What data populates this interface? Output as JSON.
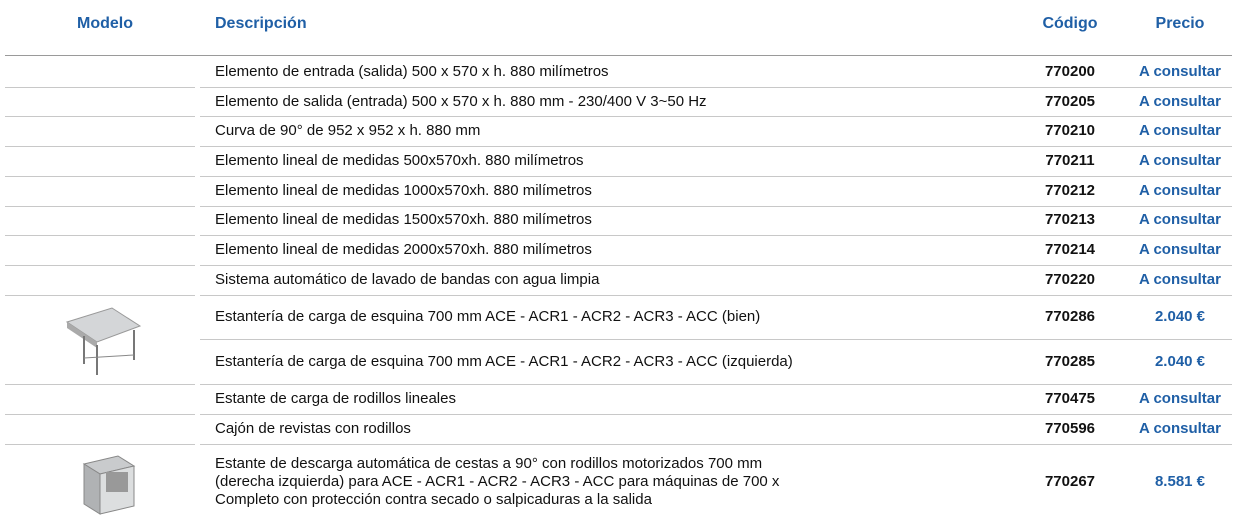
{
  "header": {
    "model": "Modelo",
    "description": "Descripción",
    "code": "Código",
    "price": "Precio"
  },
  "rows": [
    {
      "description": [
        "Elemento de entrada (salida) 500 x 570 x h. 880 milímetros"
      ],
      "code": "770200",
      "price": "A consultar"
    },
    {
      "description": [
        "Elemento de salida (entrada) 500 x 570 x h. 880 mm - 230/400 V 3~50 Hz"
      ],
      "code": "770205",
      "price": "A consultar"
    },
    {
      "description": [
        "Curva de 90° de 952 x 952 x h. 880 mm"
      ],
      "code": "770210",
      "price": "A consultar"
    },
    {
      "description": [
        "Elemento lineal de medidas 500x570xh. 880 milímetros"
      ],
      "code": "770211",
      "price": "A consultar"
    },
    {
      "description": [
        "Elemento lineal de medidas 1000x570xh. 880 milímetros"
      ],
      "code": "770212",
      "price": "A consultar"
    },
    {
      "description": [
        "Elemento lineal de medidas 1500x570xh. 880 milímetros"
      ],
      "code": "770213",
      "price": "A consultar"
    },
    {
      "description": [
        "Elemento lineal de medidas 2000x570xh. 880 milímetros"
      ],
      "code": "770214",
      "price": "A consultar"
    },
    {
      "description": [
        "Sistema automático de lavado de bandas con agua limpia"
      ],
      "code": "770220",
      "price": "A consultar"
    },
    {
      "description": [
        "Estantería de carga de esquina 700 mm ACE - ACR1 - ACR2 - ACR3 - ACC (bien)"
      ],
      "code": "770286",
      "price": "2.040 €"
    },
    {
      "description": [
        "Estantería de carga de esquina 700 mm ACE - ACR1 - ACR2 - ACR3 - ACC (izquierda)"
      ],
      "code": "770285",
      "price": "2.040 €"
    },
    {
      "description": [
        "Estante de carga de rodillos lineales"
      ],
      "code": "770475",
      "price": "A consultar"
    },
    {
      "description": [
        "Cajón de revistas con rodillos"
      ],
      "code": "770596",
      "price": "A consultar"
    },
    {
      "description": [
        "Estante de descarga automática de cestas a 90° con rodillos motorizados 700 mm",
        "(derecha izquierda) para ACE - ACR1 - ACR2 - ACR3 - ACC para máquinas de 700 x",
        "Completo con protección contra secado o salpicaduras a la salida"
      ],
      "code": "770267",
      "price": "8.581 €"
    }
  ]
}
